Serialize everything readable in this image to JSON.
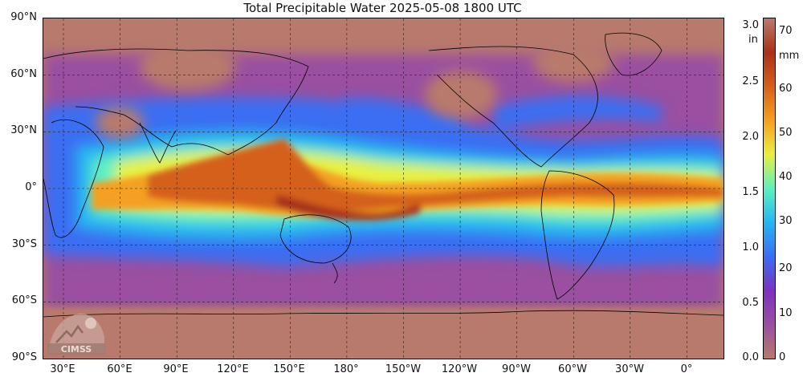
{
  "title": "Total Precipitable Water  2025-05-08 1800 UTC",
  "lat_labels": [
    "90°N",
    "60°N",
    "30°N",
    "0°",
    "30°S",
    "60°S",
    "90°S"
  ],
  "lon_labels": [
    "30°E",
    "60°E",
    "90°E",
    "120°E",
    "150°E",
    "180°",
    "150°W",
    "120°W",
    "90°W",
    "60°W",
    "30°W",
    "0°"
  ],
  "colorbar": {
    "unit_left": "in",
    "unit_right": "mm",
    "in_ticks": [
      "3.0",
      "2.5",
      "2.0",
      "1.5",
      "1.0",
      "0.5",
      "0.0"
    ],
    "mm_ticks": [
      "70",
      "60",
      "50",
      "40",
      "30",
      "20",
      "10",
      "0"
    ],
    "colors": [
      "#b77a6b",
      "#9a4fa0",
      "#7c32c0",
      "#3a6ef2",
      "#27b6f0",
      "#5ef0c0",
      "#e8f040",
      "#f4a020",
      "#d4601a",
      "#a8321a",
      "#b77a6b"
    ]
  },
  "logo_text": "CIMSS",
  "colors": {
    "dry": "#b77a6b",
    "low": "#9a4fa0",
    "blue": "#3a6ef2",
    "cyan": "#27b6f0",
    "green": "#5ef0c0",
    "yellow": "#e8f040",
    "orange": "#f4a020",
    "wet": "#d4601a",
    "very_wet": "#a8321a"
  }
}
